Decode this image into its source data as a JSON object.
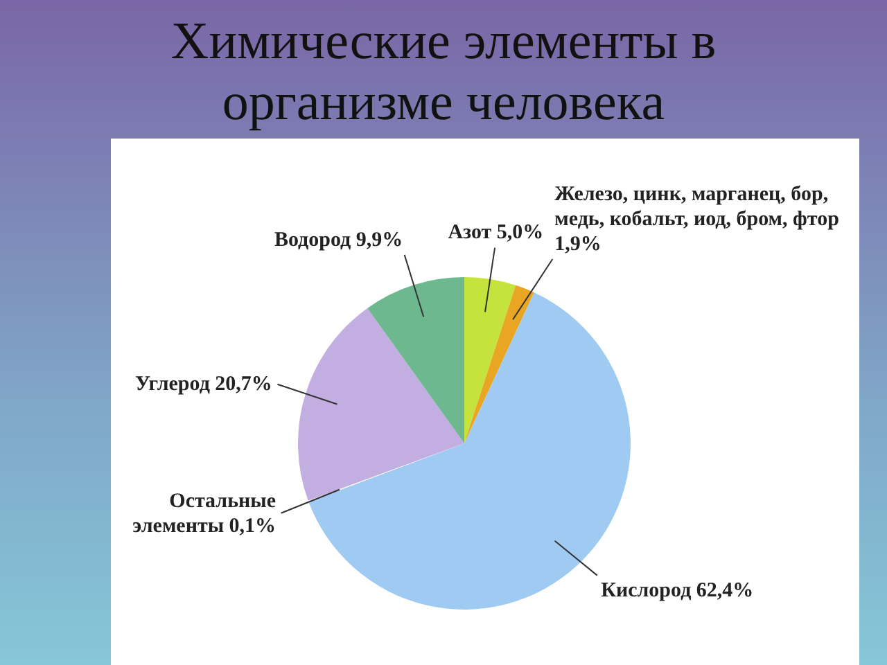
{
  "chart_data": {
    "type": "pie",
    "title": "Химические элементы в организме человека",
    "categories": [
      "Азот",
      "Железо, цинк, марганец, бор, медь, кобальт, иод, бром, фтор",
      "Кислород",
      "Остальные элементы",
      "Углерод",
      "Водород"
    ],
    "values": [
      5.0,
      1.9,
      62.4,
      0.1,
      20.7,
      9.9
    ],
    "value_labels": [
      "5,0%",
      "1,9%",
      "62,4%",
      "0,1%",
      "20,7%",
      "9,9%"
    ],
    "colors": [
      "#c6e23c",
      "#e8a623",
      "#9fcbf2",
      "#ffffff",
      "#c2aee0",
      "#6db88e"
    ]
  }
}
